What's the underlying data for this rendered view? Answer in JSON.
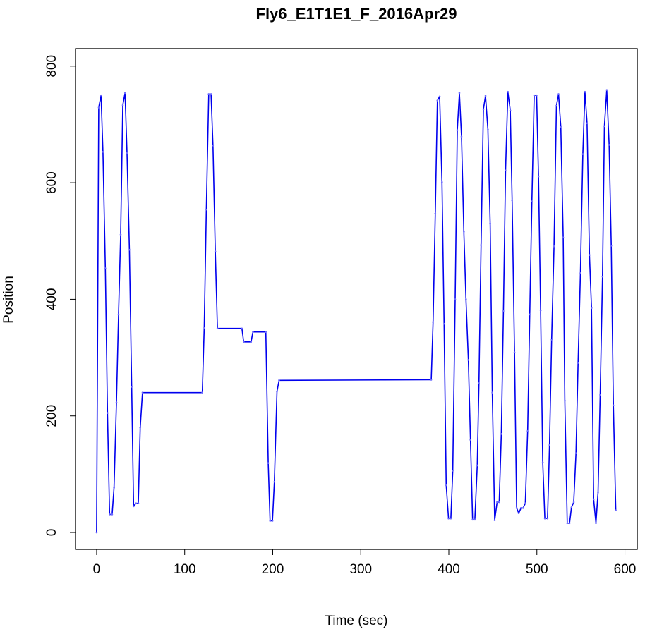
{
  "chart_data": {
    "type": "line",
    "title": "Fly6_E1T1E1_F_2016Apr29",
    "xlabel": "Time (sec)",
    "ylabel": "Position",
    "xlim": [
      -24,
      614
    ],
    "ylim": [
      -29,
      830
    ],
    "xticks": [
      0,
      100,
      200,
      300,
      400,
      500,
      600
    ],
    "yticks": [
      0,
      200,
      400,
      600,
      800
    ],
    "grid": false,
    "line_color": "#0000ee",
    "point_color": "#6a6aff",
    "series": [
      {
        "x": [
          0,
          2.4,
          5,
          7.2,
          9.9,
          12.3,
          14.7,
          17.6,
          19.8,
          22.5,
          24.9,
          27.3,
          29.7,
          32.3,
          34.5,
          37.2,
          39.8,
          42,
          44.6,
          47.3,
          49.5,
          52.1,
          120,
          122.2,
          124.6,
          127.3,
          130,
          132.1,
          134.8,
          137.2,
          165,
          167,
          175.4,
          177.5,
          192.2,
          194.9,
          197,
          199.7,
          201.9,
          204.8,
          207.2,
          380,
          382.1,
          384.6,
          387,
          389.6,
          392.2,
          394.6,
          397,
          399.7,
          402.3,
          404.5,
          407.2,
          409.6,
          412,
          414.4,
          417.1,
          419.5,
          422.2,
          424.6,
          427,
          429.6,
          432.3,
          434.2,
          436.6,
          439.3,
          441.7,
          444.4,
          447,
          449.4,
          452.1,
          454.8,
          457.2,
          459.6,
          462,
          464.4,
          467.1,
          469.8,
          471.9,
          474.6,
          477,
          479.4,
          482,
          484.4,
          486.9,
          489.5,
          491.9,
          494.3,
          497,
          499.7,
          501.9,
          504.3,
          506.7,
          509.1,
          512.1,
          514.4,
          516.8,
          519.5,
          522.2,
          524.6,
          527.2,
          529.9,
          531.8,
          534.5,
          537.1,
          539.3,
          541.9,
          544.4,
          546.8,
          549.5,
          552.2,
          554.6,
          557,
          559.7,
          562.1,
          564.5,
          567.1,
          569.5,
          571.9,
          574.6,
          576.7,
          579.4,
          582.1,
          584.5,
          586.9,
          589.6
        ],
        "y": [
          0,
          729,
          750,
          653,
          453,
          205,
          31,
          31,
          77,
          223,
          374,
          511,
          733,
          754,
          651,
          485,
          250,
          45,
          50,
          50,
          180,
          240,
          240,
          351,
          554,
          752,
          752,
          664,
          482,
          350,
          350,
          327,
          327,
          344,
          344,
          119,
          20,
          20,
          87,
          242,
          261,
          262,
          361,
          547,
          741,
          748,
          601,
          358,
          81,
          24,
          24,
          106,
          400,
          690,
          754,
          679,
          516,
          400,
          296,
          159,
          22,
          22,
          115,
          256,
          493,
          726,
          749,
          691,
          530,
          240,
          21,
          52,
          52,
          169,
          380,
          621,
          756,
          724,
          570,
          309,
          42,
          33,
          42,
          42,
          50,
          174,
          374,
          568,
          750,
          750,
          611,
          381,
          120,
          24,
          24,
          150,
          331,
          491,
          732,
          752,
          696,
          506,
          226,
          16,
          16,
          43,
          52,
          136,
          291,
          445,
          649,
          756,
          702,
          476,
          385,
          57,
          16,
          69,
          236,
          439,
          697,
          759,
          665,
          492,
          218,
          38
        ]
      }
    ]
  }
}
